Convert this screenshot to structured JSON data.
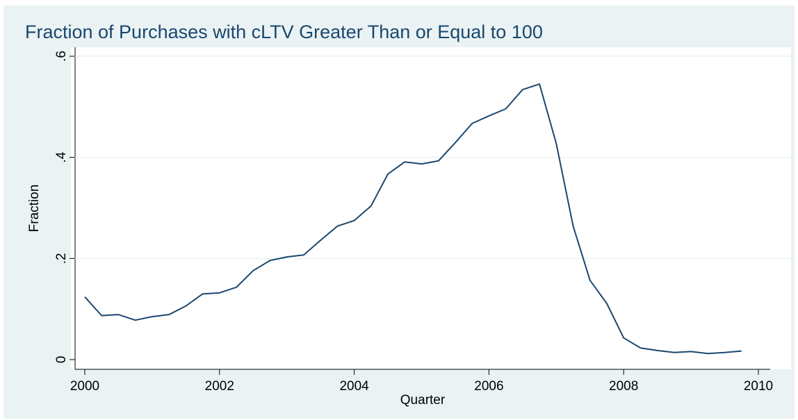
{
  "chart_data": {
    "type": "line",
    "title": "Fraction of Purchases with cLTV Greater Than or Equal to 100",
    "xlabel": "Quarter",
    "ylabel": "Fraction",
    "x": [
      2000,
      2000.25,
      2000.5,
      2000.75,
      2001,
      2001.25,
      2001.5,
      2001.75,
      2002,
      2002.25,
      2002.5,
      2002.75,
      2003,
      2003.25,
      2003.5,
      2003.75,
      2004,
      2004.25,
      2004.5,
      2004.75,
      2005,
      2005.25,
      2005.5,
      2005.75,
      2006,
      2006.25,
      2006.5,
      2006.75,
      2007,
      2007.25,
      2007.5,
      2007.75,
      2008,
      2008.25,
      2008.5,
      2008.75,
      2009,
      2009.25,
      2009.5,
      2009.75
    ],
    "series": [
      {
        "color": "#1a476f",
        "values": [
          0.124,
          0.087,
          0.089,
          0.078,
          0.085,
          0.089,
          0.106,
          0.13,
          0.132,
          0.143,
          0.176,
          0.196,
          0.203,
          0.207,
          0.236,
          0.264,
          0.275,
          0.304,
          0.367,
          0.391,
          0.387,
          0.393,
          0.429,
          0.467,
          0.482,
          0.496,
          0.534,
          0.545,
          0.427,
          0.264,
          0.157,
          0.111,
          0.043,
          0.023,
          0.018,
          0.014,
          0.016,
          0.012,
          0.014,
          0.017
        ]
      }
    ],
    "xlim": [
      2000,
      2010
    ],
    "xticks": [
      2000,
      2002,
      2004,
      2006,
      2008,
      2010
    ],
    "ylim": [
      0,
      0.6
    ],
    "yticks": [
      0,
      {
        "value": 0.2,
        "label": ".2"
      },
      {
        "value": 0.4,
        "label": ".4"
      },
      {
        "value": 0.6,
        "label": ".6"
      }
    ],
    "grid": true
  }
}
